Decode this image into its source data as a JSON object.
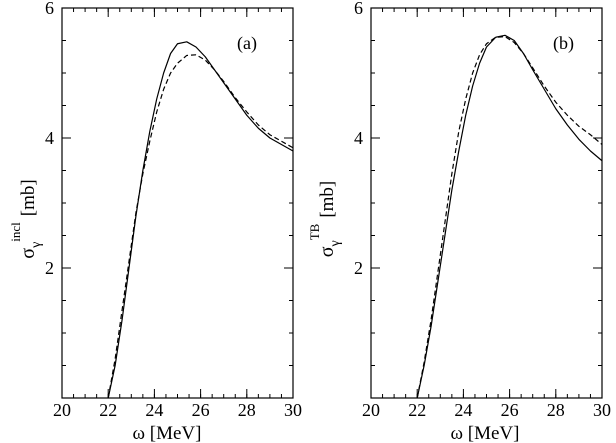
{
  "chart_data": [
    {
      "type": "line",
      "panel_label": "(a)",
      "xlabel": "ω [MeV]",
      "ylabel": {
        "symbol": "σ",
        "subscript": "γ",
        "superscript": "incl",
        "unit": "[mb]"
      },
      "xlim": [
        20,
        30
      ],
      "ylim": [
        0,
        6
      ],
      "x_ticks": [
        20,
        22,
        24,
        26,
        28,
        30
      ],
      "y_ticks": [
        2,
        4,
        6
      ],
      "series": [
        {
          "name": "solid",
          "style": "solid",
          "x": [
            22.0,
            22.3,
            22.6,
            22.9,
            23.2,
            23.5,
            23.8,
            24.1,
            24.4,
            24.7,
            25.0,
            25.4,
            25.8,
            26.2,
            26.6,
            27.0,
            27.5,
            28.0,
            28.5,
            29.0,
            29.5,
            30.0
          ],
          "y": [
            0.0,
            0.5,
            1.2,
            2.0,
            2.8,
            3.5,
            4.1,
            4.6,
            5.0,
            5.3,
            5.45,
            5.48,
            5.4,
            5.25,
            5.05,
            4.85,
            4.6,
            4.35,
            4.15,
            4.0,
            3.9,
            3.8
          ]
        },
        {
          "name": "dashed",
          "style": "dashed",
          "x": [
            22.0,
            22.3,
            22.6,
            22.9,
            23.2,
            23.5,
            23.8,
            24.1,
            24.4,
            24.7,
            25.0,
            25.4,
            25.8,
            26.2,
            26.6,
            27.0,
            27.5,
            28.0,
            28.5,
            29.0,
            29.5,
            30.0
          ],
          "y": [
            0.0,
            0.6,
            1.35,
            2.1,
            2.85,
            3.45,
            3.95,
            4.4,
            4.75,
            5.0,
            5.15,
            5.27,
            5.28,
            5.2,
            5.05,
            4.87,
            4.62,
            4.4,
            4.2,
            4.05,
            3.95,
            3.85
          ]
        }
      ]
    },
    {
      "type": "line",
      "panel_label": "(b)",
      "xlabel": "ω [MeV]",
      "ylabel": {
        "symbol": "σ",
        "subscript": "γ",
        "superscript": "TB",
        "unit": "[mb]"
      },
      "xlim": [
        20,
        30
      ],
      "ylim": [
        0,
        6
      ],
      "x_ticks": [
        20,
        22,
        24,
        26,
        28,
        30
      ],
      "y_ticks": [
        2,
        4,
        6
      ],
      "series": [
        {
          "name": "solid",
          "style": "solid",
          "x": [
            22.0,
            22.3,
            22.6,
            22.9,
            23.2,
            23.5,
            23.8,
            24.1,
            24.4,
            24.7,
            25.0,
            25.4,
            25.8,
            26.2,
            26.6,
            27.0,
            27.5,
            28.0,
            28.5,
            29.0,
            29.5,
            30.0
          ],
          "y": [
            0.0,
            0.5,
            1.1,
            1.8,
            2.5,
            3.2,
            3.8,
            4.35,
            4.8,
            5.15,
            5.4,
            5.55,
            5.58,
            5.5,
            5.3,
            5.05,
            4.75,
            4.45,
            4.2,
            3.98,
            3.8,
            3.65
          ]
        },
        {
          "name": "dashed",
          "style": "dashed",
          "x": [
            22.0,
            22.3,
            22.6,
            22.9,
            23.2,
            23.5,
            23.8,
            24.1,
            24.4,
            24.7,
            25.0,
            25.4,
            25.8,
            26.2,
            26.6,
            27.0,
            27.5,
            28.0,
            28.5,
            29.0,
            29.5,
            30.0
          ],
          "y": [
            0.0,
            0.55,
            1.2,
            1.95,
            2.7,
            3.45,
            4.1,
            4.6,
            5.0,
            5.28,
            5.45,
            5.55,
            5.56,
            5.47,
            5.3,
            5.08,
            4.8,
            4.55,
            4.35,
            4.18,
            4.05,
            3.9
          ]
        }
      ]
    }
  ]
}
